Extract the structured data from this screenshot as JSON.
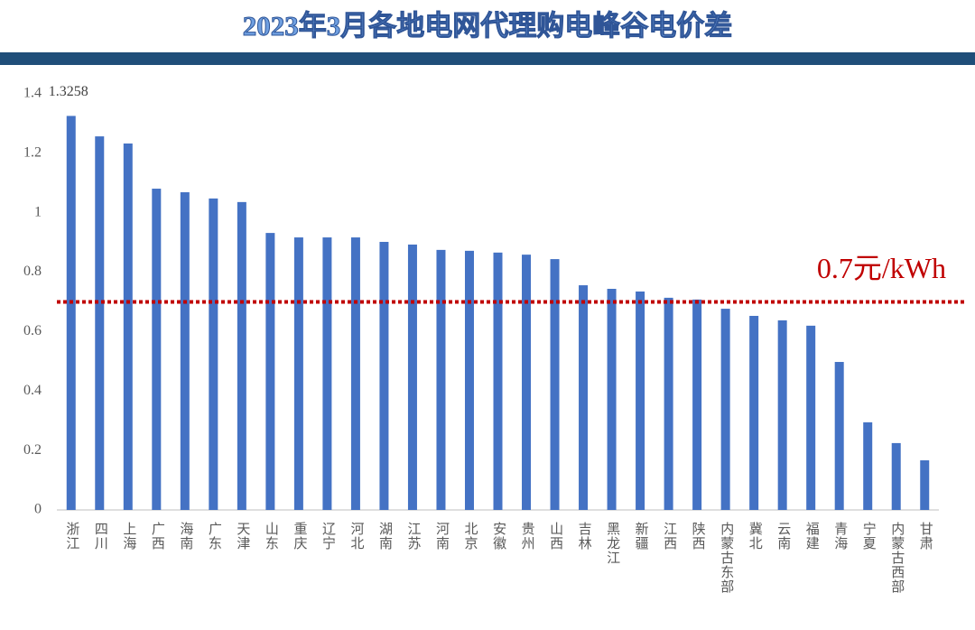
{
  "chart_data": {
    "type": "bar",
    "title": "2023年3月各地电网代理购电峰谷电价差",
    "categories": [
      "浙江",
      "四川",
      "上海",
      "广西",
      "海南",
      "广东",
      "天津",
      "山东",
      "重庆",
      "辽宁",
      "河北",
      "湖南",
      "江苏",
      "河南",
      "北京",
      "安徽",
      "贵州",
      "山西",
      "吉林",
      "黑龙江",
      "新疆",
      "江西",
      "陕西",
      "内蒙古东部",
      "冀北",
      "云南",
      "福建",
      "青海",
      "宁夏",
      "内蒙古西部",
      "甘肃"
    ],
    "values": [
      1.3258,
      1.257,
      1.233,
      1.081,
      1.069,
      1.048,
      1.036,
      0.932,
      0.917,
      0.917,
      0.917,
      0.902,
      0.893,
      0.875,
      0.872,
      0.866,
      0.859,
      0.844,
      0.756,
      0.744,
      0.735,
      0.714,
      0.708,
      0.677,
      0.653,
      0.638,
      0.62,
      0.498,
      0.295,
      0.225,
      0.167
    ],
    "color": "#4472c4",
    "data_label_indices": [
      0
    ],
    "ylim": [
      0,
      1.4
    ],
    "yticks": [
      0,
      0.2,
      0.4,
      0.6,
      0.8,
      1,
      1.2,
      1.4
    ],
    "grid": false,
    "reference_line": {
      "value": 0.7,
      "label": "0.7元/kWh",
      "color": "#c00000"
    }
  }
}
